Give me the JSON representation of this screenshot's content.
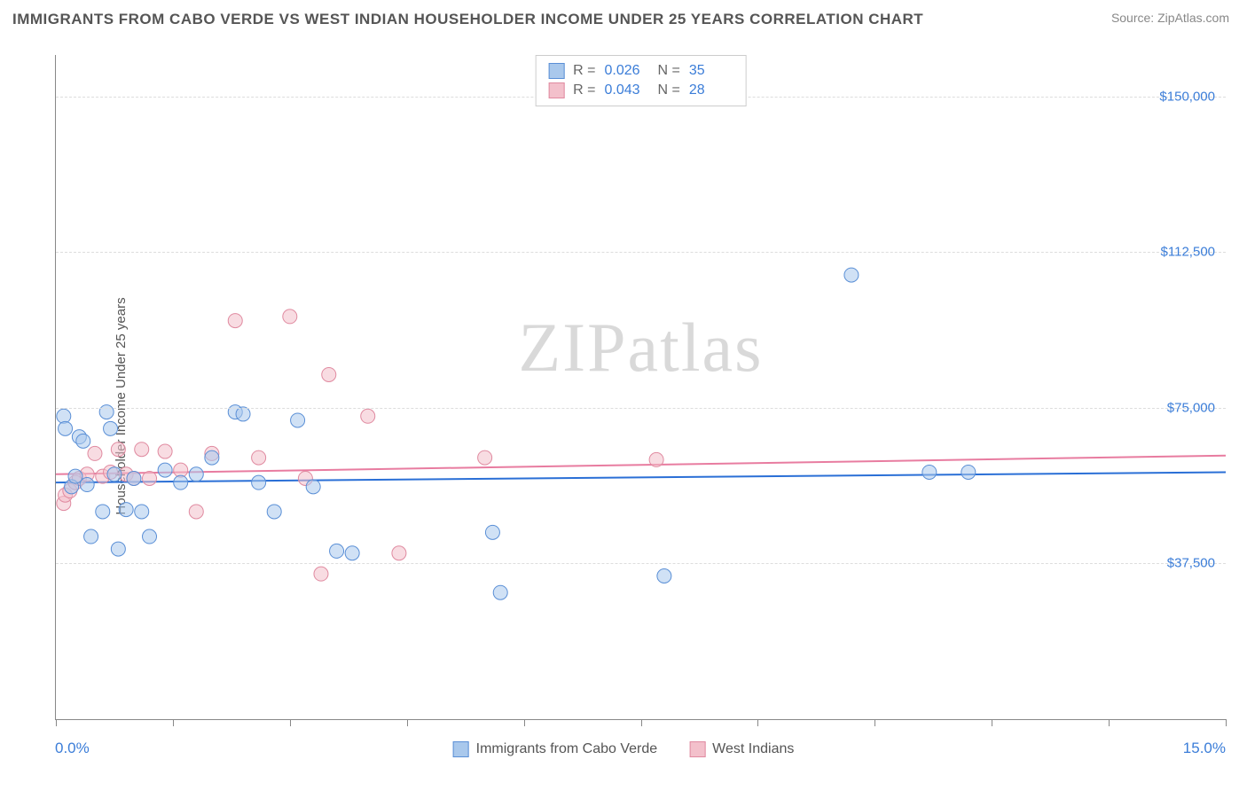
{
  "header": {
    "title": "IMMIGRANTS FROM CABO VERDE VS WEST INDIAN HOUSEHOLDER INCOME UNDER 25 YEARS CORRELATION CHART",
    "source": "Source: ZipAtlas.com"
  },
  "ylabel": "Householder Income Under 25 years",
  "watermark": {
    "bold": "ZIP",
    "light": "atlas"
  },
  "chart": {
    "type": "scatter",
    "xlim": [
      0,
      15
    ],
    "ylim": [
      0,
      160000
    ],
    "x_tick_positions": [
      0,
      1.5,
      3,
      4.5,
      6,
      7.5,
      9,
      10.5,
      12,
      13.5,
      15
    ],
    "y_gridlines": [
      37500,
      75000,
      112500,
      150000
    ],
    "y_tick_labels": [
      "$37,500",
      "$75,000",
      "$112,500",
      "$150,000"
    ],
    "x_min_label": "0.0%",
    "x_max_label": "15.0%",
    "background_color": "#ffffff",
    "grid_color": "#dddddd",
    "axis_color": "#888888",
    "marker_radius": 8,
    "marker_opacity": 0.55,
    "series": [
      {
        "name": "Immigrants from Cabo Verde",
        "fill": "#a9c8ec",
        "stroke": "#5a8fd6",
        "trend_color": "#2a6fd6",
        "trend_width": 2,
        "R": "0.026",
        "N": "35",
        "trend": {
          "y_at_xmin": 57000,
          "y_at_xmax": 59500
        },
        "points": [
          [
            0.1,
            73000
          ],
          [
            0.12,
            70000
          ],
          [
            0.2,
            56000
          ],
          [
            0.25,
            58500
          ],
          [
            0.3,
            68000
          ],
          [
            0.35,
            67000
          ],
          [
            0.4,
            56500
          ],
          [
            0.45,
            44000
          ],
          [
            0.6,
            50000
          ],
          [
            0.65,
            74000
          ],
          [
            0.7,
            70000
          ],
          [
            0.75,
            59000
          ],
          [
            0.8,
            41000
          ],
          [
            0.9,
            50500
          ],
          [
            1.0,
            58000
          ],
          [
            1.1,
            50000
          ],
          [
            1.2,
            44000
          ],
          [
            1.4,
            60000
          ],
          [
            1.6,
            57000
          ],
          [
            1.8,
            59000
          ],
          [
            2.0,
            63000
          ],
          [
            2.3,
            74000
          ],
          [
            2.4,
            73500
          ],
          [
            2.6,
            57000
          ],
          [
            2.8,
            50000
          ],
          [
            3.1,
            72000
          ],
          [
            3.3,
            56000
          ],
          [
            3.6,
            40500
          ],
          [
            3.8,
            40000
          ],
          [
            5.6,
            45000
          ],
          [
            5.7,
            30500
          ],
          [
            7.8,
            34500
          ],
          [
            10.2,
            107000
          ],
          [
            11.2,
            59500
          ],
          [
            11.7,
            59500
          ]
        ]
      },
      {
        "name": "West Indians",
        "fill": "#f3c0cb",
        "stroke": "#e08aa0",
        "trend_color": "#e87ca0",
        "trend_width": 2,
        "R": "0.043",
        "N": "28",
        "trend": {
          "y_at_xmin": 59000,
          "y_at_xmax": 63500
        },
        "points": [
          [
            0.1,
            52000
          ],
          [
            0.12,
            54000
          ],
          [
            0.18,
            55000
          ],
          [
            0.25,
            57000
          ],
          [
            0.3,
            58000
          ],
          [
            0.4,
            59000
          ],
          [
            0.5,
            64000
          ],
          [
            0.6,
            58500
          ],
          [
            0.7,
            59500
          ],
          [
            0.8,
            65000
          ],
          [
            0.9,
            59000
          ],
          [
            1.0,
            58000
          ],
          [
            1.1,
            65000
          ],
          [
            1.2,
            58000
          ],
          [
            1.4,
            64500
          ],
          [
            1.6,
            60000
          ],
          [
            1.8,
            50000
          ],
          [
            2.0,
            64000
          ],
          [
            2.3,
            96000
          ],
          [
            2.6,
            63000
          ],
          [
            3.0,
            97000
          ],
          [
            3.2,
            58000
          ],
          [
            3.4,
            35000
          ],
          [
            3.5,
            83000
          ],
          [
            4.0,
            73000
          ],
          [
            4.4,
            40000
          ],
          [
            5.5,
            63000
          ],
          [
            7.7,
            62500
          ]
        ]
      }
    ]
  },
  "colors": {
    "link_blue": "#3b7dd8",
    "text_gray": "#555555"
  }
}
